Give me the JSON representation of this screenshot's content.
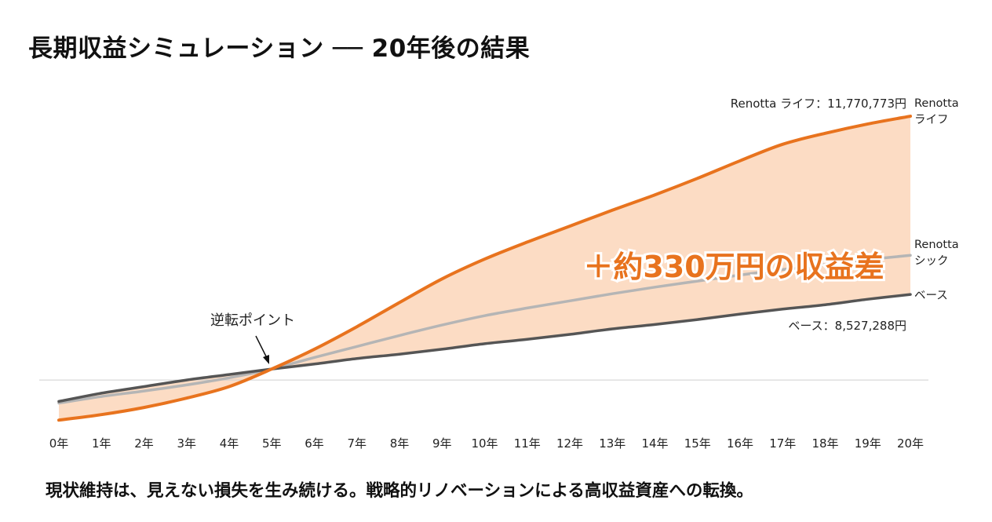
{
  "title": "長期収益シミュレーション ── 20年後の結果",
  "caption": "現状維持は、見えない損失を生み続ける。戦略的リノベーションによる高収益資産への転換。",
  "chart_data": {
    "type": "line",
    "title": "長期収益シミュレーション ── 20年後の結果",
    "xlabel": "",
    "ylabel": "",
    "categories": [
      "0年",
      "1年",
      "2年",
      "3年",
      "4年",
      "5年",
      "6年",
      "7年",
      "8年",
      "9年",
      "10年",
      "11年",
      "12年",
      "13年",
      "14年",
      "15年",
      "16年",
      "17年",
      "18年",
      "19年",
      "20年"
    ],
    "ylim": [
      6000000,
      12000000
    ],
    "y_unit": "円",
    "grid": false,
    "reference_line": 6970000,
    "series": [
      {
        "name": "Renotta ライフ",
        "color": "#e8731e",
        "values": [
          6240000,
          6340000,
          6470000,
          6640000,
          6850000,
          7170000,
          7530000,
          7940000,
          8380000,
          8810000,
          9170000,
          9480000,
          9770000,
          10060000,
          10340000,
          10640000,
          10960000,
          11260000,
          11460000,
          11630000,
          11770773
        ]
      },
      {
        "name": "Renotta シック",
        "color": "#b5b5b5",
        "values": [
          6550000,
          6670000,
          6770000,
          6880000,
          7010000,
          7170000,
          7380000,
          7580000,
          7780000,
          7970000,
          8140000,
          8280000,
          8410000,
          8540000,
          8660000,
          8770000,
          8880000,
          8980000,
          9070000,
          9160000,
          9240000
        ]
      },
      {
        "name": "ベース",
        "color": "#555555",
        "values": [
          6580000,
          6730000,
          6850000,
          6970000,
          7070000,
          7170000,
          7260000,
          7360000,
          7440000,
          7530000,
          7630000,
          7710000,
          7800000,
          7900000,
          7980000,
          8070000,
          8170000,
          8260000,
          8340000,
          8440000,
          8527288
        ]
      }
    ],
    "fill_between": {
      "upper": "Renotta ライフ",
      "lower": "ベース",
      "color": "#fcd6ba"
    },
    "end_labels": [
      "Renotta\nライフ",
      "Renotta\nシック",
      "ベース"
    ],
    "value_labels": {
      "life": "Renotta ライフ：11,770,773円",
      "base": "ベース：8,527,288円"
    },
    "annotations": {
      "crossover": "逆転ポイント",
      "crossover_year": "5年",
      "difference": "＋約330万円の収益差"
    }
  }
}
